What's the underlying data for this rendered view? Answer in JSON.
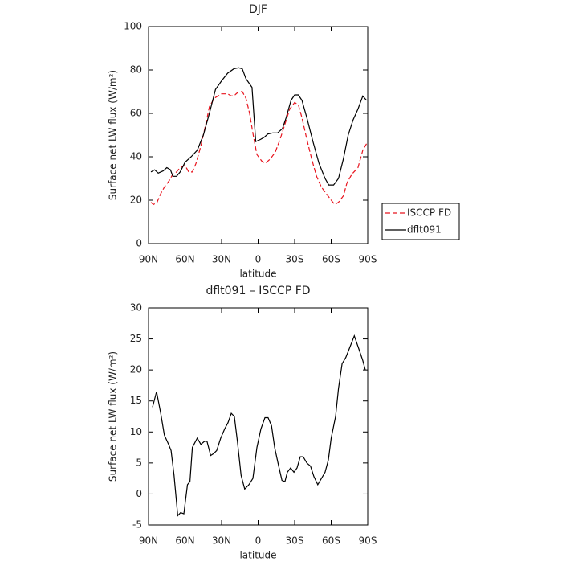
{
  "chart_data": [
    {
      "type": "line",
      "title": "DJF",
      "xlabel": "latitude",
      "ylabel": "Surface net LW flux (W/m²)",
      "xlim": [
        90,
        -90
      ],
      "ylim": [
        0,
        100
      ],
      "xticks": [
        {
          "value": 90,
          "label": "90N"
        },
        {
          "value": 60,
          "label": "60N"
        },
        {
          "value": 30,
          "label": "30N"
        },
        0,
        {
          "value": -30,
          "label": "30S"
        },
        {
          "value": -60,
          "label": "60S"
        },
        {
          "value": -90,
          "label": "90S"
        }
      ],
      "yticks": [
        0,
        20,
        40,
        60,
        80,
        100
      ],
      "legend": "outside right",
      "series": [
        {
          "name": "ISCCP FD",
          "color": "#e8141e",
          "linestyle": "dashed",
          "x": [
            88,
            86,
            83,
            80,
            77,
            73,
            70,
            67,
            64,
            60,
            57,
            54,
            51,
            47,
            43,
            40,
            36,
            30,
            25,
            22,
            19,
            16,
            13,
            10,
            7,
            4,
            1,
            -3,
            -6,
            -10,
            -14,
            -18,
            -22,
            -26,
            -30,
            -33,
            -36,
            -40,
            -44,
            -48,
            -52,
            -56,
            -60,
            -63,
            -66,
            -70,
            -73,
            -77,
            -82,
            -86,
            -89
          ],
          "values": [
            19,
            18,
            19,
            23,
            26,
            29,
            32,
            33,
            35,
            36,
            33,
            33,
            37,
            45,
            55,
            63,
            67,
            69,
            69,
            68,
            68.5,
            70,
            70,
            67,
            60,
            50,
            41,
            38,
            37,
            39,
            42,
            48,
            55,
            62,
            65,
            64,
            58,
            48,
            39,
            31,
            26,
            23,
            20,
            18,
            19,
            22,
            28,
            32,
            35,
            43,
            46
          ]
        },
        {
          "name": "dflt091",
          "color": "#000000",
          "linestyle": "solid",
          "x": [
            88,
            85,
            82,
            78,
            75,
            72,
            70,
            67,
            64,
            60,
            55,
            50,
            45,
            40,
            35,
            30,
            25,
            20,
            16,
            13,
            10,
            5,
            2,
            -2,
            -5,
            -8,
            -12,
            -16,
            -20,
            -23,
            -27,
            -30,
            -33,
            -36,
            -40,
            -45,
            -50,
            -55,
            -58,
            -62,
            -66,
            -70,
            -74,
            -78,
            -82,
            -86,
            -89
          ],
          "values": [
            33,
            34,
            32.5,
            33.5,
            35,
            34,
            31,
            31,
            33,
            37.5,
            40,
            43,
            50,
            60,
            71,
            75,
            78.5,
            80.5,
            81,
            80.5,
            76,
            72,
            47,
            48,
            49,
            50.5,
            51,
            51,
            53,
            58,
            66,
            68.5,
            68.5,
            66,
            58,
            47,
            37,
            30,
            27,
            27,
            30,
            39,
            50,
            57,
            62,
            68,
            66
          ]
        }
      ]
    },
    {
      "type": "line",
      "title": "dflt091 – ISCCP FD",
      "xlabel": "latitude",
      "ylabel": "Surface net LW flux (W/m²)",
      "xlim": [
        90,
        -90
      ],
      "ylim": [
        -5,
        30
      ],
      "xticks": [
        {
          "value": 90,
          "label": "90N"
        },
        {
          "value": 60,
          "label": "60N"
        },
        {
          "value": 30,
          "label": "30N"
        },
        0,
        {
          "value": -30,
          "label": "30S"
        },
        {
          "value": -60,
          "label": "60S"
        },
        {
          "value": -90,
          "label": "90S"
        }
      ],
      "yticks": [
        -5,
        0,
        5,
        10,
        15,
        20,
        25,
        30
      ],
      "color": "#000000",
      "x": [
        86.7,
        83.4,
        80,
        77,
        73.5,
        71.5,
        69,
        66,
        63.6,
        61,
        58,
        56,
        54,
        50,
        47,
        44,
        42,
        39,
        36.6,
        34,
        30.7,
        27.4,
        24.7,
        22,
        19.5,
        17,
        14,
        11,
        7.6,
        4.3,
        1,
        -2.3,
        -5.6,
        -8.2,
        -11,
        -13.6,
        -16.9,
        -19.6,
        -22,
        -24,
        -26.7,
        -29.4,
        -32,
        -34.6,
        -37,
        -40,
        -43,
        -45.8,
        -49,
        -52,
        -55,
        -57.7,
        -60,
        -63.6,
        -66,
        -69,
        -72,
        -75,
        -79,
        -83.4,
        -86,
        -88
      ],
      "values": [
        14,
        16.5,
        13,
        9.5,
        8,
        7,
        3,
        -3.5,
        -3,
        -3.2,
        1.5,
        2,
        7.5,
        9,
        8,
        8.5,
        8.5,
        6.2,
        6.5,
        7,
        9,
        10.5,
        11.5,
        13,
        12.5,
        8.5,
        3,
        0.8,
        1.5,
        2.5,
        7.5,
        10.5,
        12.3,
        12.3,
        11,
        7.5,
        4.5,
        2.2,
        2,
        3.5,
        4.2,
        3.5,
        4.2,
        6,
        6,
        5,
        4.5,
        2.8,
        1.5,
        2.5,
        3.5,
        5.5,
        9,
        12.5,
        17,
        21,
        22,
        23.5,
        25.5,
        23,
        21.5,
        20
      ]
    }
  ]
}
